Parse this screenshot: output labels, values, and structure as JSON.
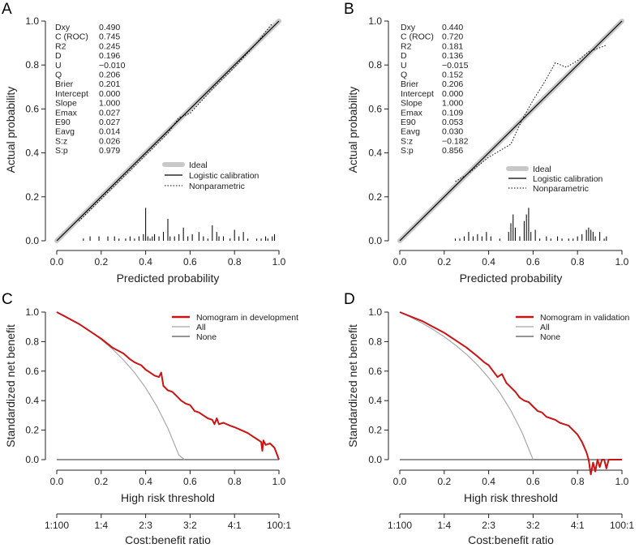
{
  "chart_data": [
    {
      "panel": "A",
      "type": "line",
      "subtype": "calibration",
      "xlabel": "Predicted probability",
      "ylabel": "Actual probability",
      "xlim": [
        0,
        1
      ],
      "ylim": [
        0,
        1
      ],
      "xticks": [
        "0.0",
        "0.2",
        "0.4",
        "0.6",
        "0.8",
        "1.0"
      ],
      "yticks": [
        "0.0",
        "0.2",
        "0.4",
        "0.6",
        "0.8",
        "1.0"
      ],
      "stats": [
        {
          "name": "Dxy",
          "value": "0.490"
        },
        {
          "name": "C (ROC)",
          "value": "0.745"
        },
        {
          "name": "R2",
          "value": "0.245"
        },
        {
          "name": "D",
          "value": "0.196"
        },
        {
          "name": "U",
          "value": "−0.010"
        },
        {
          "name": "Q",
          "value": "0.206"
        },
        {
          "name": "Brier",
          "value": "0.201"
        },
        {
          "name": "Intercept",
          "value": "0.000"
        },
        {
          "name": "Slope",
          "value": "1.000"
        },
        {
          "name": "Emax",
          "value": "0.027"
        },
        {
          "name": "E90",
          "value": "0.027"
        },
        {
          "name": "Eavg",
          "value": "0.014"
        },
        {
          "name": "S:z",
          "value": "0.026"
        },
        {
          "name": "S:p",
          "value": "0.979"
        }
      ],
      "legend": [
        "Ideal",
        "Logistic calibration",
        "Nonparametric"
      ],
      "series": [
        {
          "name": "Ideal",
          "x": [
            0,
            1
          ],
          "y": [
            0,
            1
          ]
        },
        {
          "name": "Logistic calibration",
          "x": [
            0,
            1
          ],
          "y": [
            0,
            1
          ]
        },
        {
          "name": "Nonparametric",
          "x": [
            0.1,
            0.2,
            0.3,
            0.4,
            0.45,
            0.5,
            0.55,
            0.6,
            0.7,
            0.8,
            0.9,
            0.97
          ],
          "y": [
            0.09,
            0.19,
            0.29,
            0.39,
            0.44,
            0.49,
            0.56,
            0.58,
            0.69,
            0.79,
            0.9,
            0.99
          ]
        }
      ],
      "spikes": {
        "x": [
          0.12,
          0.15,
          0.19,
          0.23,
          0.26,
          0.28,
          0.31,
          0.33,
          0.35,
          0.37,
          0.39,
          0.4,
          0.41,
          0.42,
          0.43,
          0.44,
          0.46,
          0.48,
          0.5,
          0.51,
          0.53,
          0.55,
          0.57,
          0.59,
          0.61,
          0.64,
          0.66,
          0.68,
          0.7,
          0.72,
          0.73,
          0.75,
          0.78,
          0.8,
          0.82,
          0.84,
          0.86,
          0.9,
          0.92,
          0.94,
          0.95,
          0.97,
          0.98
        ],
        "h": [
          0.01,
          0.02,
          0.02,
          0.02,
          0.02,
          0.01,
          0.01,
          0.02,
          0.01,
          0.02,
          0.03,
          0.15,
          0.02,
          0.01,
          0.02,
          0.03,
          0.02,
          0.04,
          0.1,
          0.02,
          0.02,
          0.03,
          0.06,
          0.02,
          0.03,
          0.04,
          0.02,
          0.01,
          0.07,
          0.04,
          0.02,
          0.02,
          0.01,
          0.05,
          0.02,
          0.04,
          0.01,
          0.01,
          0.01,
          0.02,
          0.01,
          0.02,
          0.03
        ]
      }
    },
    {
      "panel": "B",
      "type": "line",
      "subtype": "calibration",
      "xlabel": "Predicted probability",
      "ylabel": "Actual probability",
      "xlim": [
        0,
        1
      ],
      "ylim": [
        0,
        1
      ],
      "xticks": [
        "0.0",
        "0.2",
        "0.4",
        "0.6",
        "0.8",
        "1.0"
      ],
      "yticks": [
        "0.0",
        "0.2",
        "0.4",
        "0.6",
        "0.8",
        "1.0"
      ],
      "stats": [
        {
          "name": "Dxy",
          "value": "0.440"
        },
        {
          "name": "C (ROC)",
          "value": "0.720"
        },
        {
          "name": "R2",
          "value": "0.181"
        },
        {
          "name": "D",
          "value": "0.136"
        },
        {
          "name": "U",
          "value": "−0.015"
        },
        {
          "name": "Q",
          "value": "0.152"
        },
        {
          "name": "Brier",
          "value": "0.206"
        },
        {
          "name": "Intercept",
          "value": "0.000"
        },
        {
          "name": "Slope",
          "value": "1.000"
        },
        {
          "name": "Emax",
          "value": "0.109"
        },
        {
          "name": "E90",
          "value": "0.053"
        },
        {
          "name": "Eavg",
          "value": "0.030"
        },
        {
          "name": "S:z",
          "value": "−0.182"
        },
        {
          "name": "S:p",
          "value": "0.856"
        }
      ],
      "legend": [
        "Ideal",
        "Logistic calibration",
        "Nonparametric"
      ],
      "series": [
        {
          "name": "Ideal",
          "x": [
            0,
            1
          ],
          "y": [
            0,
            1
          ]
        },
        {
          "name": "Logistic calibration",
          "x": [
            0,
            1
          ],
          "y": [
            0,
            1
          ]
        },
        {
          "name": "Nonparametric",
          "x": [
            0.25,
            0.3,
            0.35,
            0.4,
            0.45,
            0.5,
            0.55,
            0.6,
            0.65,
            0.7,
            0.75,
            0.8,
            0.85,
            0.93
          ],
          "y": [
            0.27,
            0.3,
            0.34,
            0.38,
            0.41,
            0.44,
            0.55,
            0.64,
            0.72,
            0.81,
            0.79,
            0.82,
            0.86,
            0.89
          ]
        }
      ],
      "spikes": {
        "x": [
          0.25,
          0.27,
          0.29,
          0.31,
          0.33,
          0.35,
          0.37,
          0.39,
          0.41,
          0.45,
          0.49,
          0.5,
          0.51,
          0.52,
          0.54,
          0.56,
          0.57,
          0.58,
          0.59,
          0.61,
          0.63,
          0.66,
          0.68,
          0.71,
          0.73,
          0.76,
          0.78,
          0.8,
          0.82,
          0.84,
          0.85,
          0.86,
          0.87,
          0.88,
          0.9,
          0.92,
          0.93
        ],
        "h": [
          0.01,
          0.01,
          0.02,
          0.04,
          0.02,
          0.03,
          0.02,
          0.04,
          0.02,
          0.01,
          0.04,
          0.08,
          0.12,
          0.06,
          0.02,
          0.09,
          0.12,
          0.15,
          0.04,
          0.05,
          0.01,
          0.02,
          0.01,
          0.02,
          0.01,
          0.01,
          0.01,
          0.02,
          0.03,
          0.05,
          0.06,
          0.05,
          0.04,
          0.02,
          0.04,
          0.01,
          0.02
        ]
      }
    },
    {
      "panel": "C",
      "type": "line",
      "subtype": "decision-curve",
      "xlabel": "High risk threshold",
      "ylabel": "Standardized net benefit",
      "xlim": [
        0,
        1
      ],
      "ylim": [
        0,
        1
      ],
      "xticks": [
        "0.0",
        "0.2",
        "0.4",
        "0.6",
        "0.8",
        "1.0"
      ],
      "yticks": [
        "0.0",
        "0.2",
        "0.4",
        "0.6",
        "0.8",
        "1.0"
      ],
      "x2label": "Cost:benefit ratio",
      "x2ticks": [
        "1:100",
        "1:4",
        "2:3",
        "3:2",
        "4:1",
        "100:1"
      ],
      "legend": [
        "Nomogram in development",
        "All",
        "None"
      ],
      "series": [
        {
          "name": "Nomogram in development",
          "color": "#c81414",
          "x": [
            0.0,
            0.05,
            0.1,
            0.15,
            0.2,
            0.25,
            0.3,
            0.33,
            0.35,
            0.38,
            0.4,
            0.42,
            0.44,
            0.46,
            0.47,
            0.48,
            0.5,
            0.52,
            0.54,
            0.56,
            0.58,
            0.6,
            0.62,
            0.64,
            0.66,
            0.68,
            0.7,
            0.71,
            0.72,
            0.73,
            0.75,
            0.78,
            0.8,
            0.83,
            0.86,
            0.88,
            0.9,
            0.92,
            0.925,
            0.93,
            0.94,
            0.96,
            0.98,
            1.0
          ],
          "y": [
            1.0,
            0.96,
            0.92,
            0.87,
            0.82,
            0.76,
            0.72,
            0.68,
            0.66,
            0.64,
            0.61,
            0.59,
            0.57,
            0.56,
            0.59,
            0.5,
            0.47,
            0.46,
            0.43,
            0.4,
            0.38,
            0.37,
            0.33,
            0.32,
            0.3,
            0.28,
            0.27,
            0.24,
            0.28,
            0.24,
            0.25,
            0.23,
            0.22,
            0.2,
            0.18,
            0.16,
            0.14,
            0.12,
            0.06,
            0.13,
            0.1,
            0.11,
            0.08,
            0.0
          ]
        },
        {
          "name": "All",
          "color": "#a8a8a8",
          "x": [
            0.0,
            0.05,
            0.1,
            0.15,
            0.2,
            0.25,
            0.3,
            0.35,
            0.4,
            0.45,
            0.5,
            0.55,
            0.575
          ],
          "y": [
            1.0,
            0.962,
            0.919,
            0.87,
            0.814,
            0.75,
            0.676,
            0.59,
            0.487,
            0.363,
            0.213,
            0.03,
            0.0
          ]
        },
        {
          "name": "None",
          "color": "#555555",
          "x": [
            0,
            1
          ],
          "y": [
            0,
            0
          ]
        }
      ]
    },
    {
      "panel": "D",
      "type": "line",
      "subtype": "decision-curve",
      "xlabel": "High risk threshold",
      "ylabel": "Standardized net benefit",
      "xlim": [
        0,
        1
      ],
      "ylim": [
        0,
        1
      ],
      "xticks": [
        "0.0",
        "0.2",
        "0.4",
        "0.6",
        "0.8",
        "1.0"
      ],
      "yticks": [
        "0.0",
        "0.2",
        "0.4",
        "0.6",
        "0.8",
        "1.0"
      ],
      "x2label": "Cost:benefit ratio",
      "x2ticks": [
        "1:100",
        "1:4",
        "2:3",
        "3:2",
        "4:1",
        "100:1"
      ],
      "legend": [
        "Nomogram in validation",
        "All",
        "None"
      ],
      "series": [
        {
          "name": "Nomogram in validation",
          "color": "#c81414",
          "x": [
            0.0,
            0.05,
            0.1,
            0.15,
            0.2,
            0.25,
            0.3,
            0.35,
            0.38,
            0.4,
            0.42,
            0.44,
            0.46,
            0.48,
            0.5,
            0.52,
            0.54,
            0.56,
            0.58,
            0.6,
            0.62,
            0.64,
            0.66,
            0.68,
            0.7,
            0.72,
            0.74,
            0.76,
            0.78,
            0.8,
            0.82,
            0.84,
            0.85,
            0.86,
            0.87,
            0.88,
            0.89,
            0.9,
            0.91,
            0.92,
            0.93,
            0.94,
            1.0
          ],
          "y": [
            1.0,
            0.97,
            0.94,
            0.9,
            0.86,
            0.81,
            0.76,
            0.7,
            0.66,
            0.64,
            0.6,
            0.56,
            0.58,
            0.52,
            0.49,
            0.46,
            0.42,
            0.4,
            0.39,
            0.36,
            0.33,
            0.32,
            0.29,
            0.28,
            0.27,
            0.25,
            0.24,
            0.23,
            0.2,
            0.17,
            0.12,
            0.05,
            0.0,
            -0.1,
            -0.02,
            -0.08,
            0.0,
            -0.05,
            0.0,
            0.0,
            -0.06,
            0.0,
            0.0
          ]
        },
        {
          "name": "All",
          "color": "#a8a8a8",
          "x": [
            0.0,
            0.05,
            0.1,
            0.15,
            0.2,
            0.25,
            0.3,
            0.35,
            0.4,
            0.45,
            0.5,
            0.55,
            0.6
          ],
          "y": [
            1.0,
            0.965,
            0.926,
            0.882,
            0.833,
            0.777,
            0.714,
            0.641,
            0.555,
            0.454,
            0.333,
            0.185,
            0.0
          ]
        },
        {
          "name": "None",
          "color": "#555555",
          "x": [
            0,
            1
          ],
          "y": [
            0,
            0
          ]
        }
      ]
    }
  ]
}
